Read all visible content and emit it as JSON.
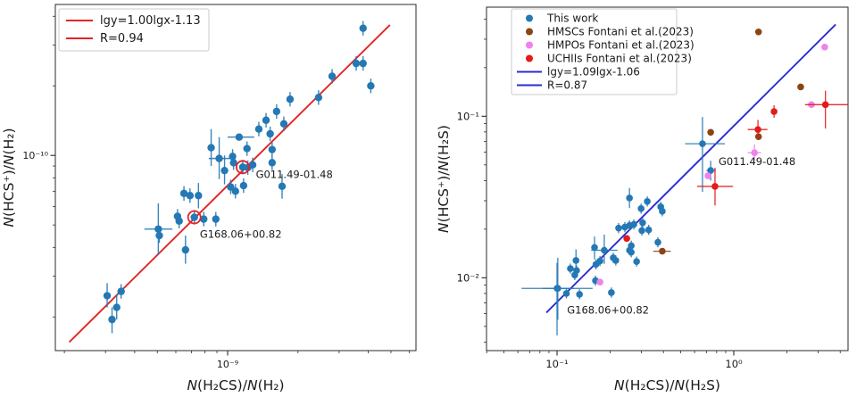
{
  "figure_background": "#ffffff",
  "chart_data": [
    {
      "type": "scatter",
      "title": "",
      "xlabel": "N(H₂CS)/N(H₂)",
      "ylabel": "N(HCS⁺)/N(H₂)",
      "xscale": "log",
      "yscale": "log",
      "grid": false,
      "legend_position": "upper left",
      "xlim": [
        1.83e-10,
        6.4e-09
      ],
      "ylim": [
        1.43e-11,
        4.5e-10
      ],
      "xticks": [
        {
          "value": 1e-09,
          "label": "10⁻⁹"
        }
      ],
      "yticks": [
        {
          "value": 1e-10,
          "label": "10⁻¹⁰"
        }
      ],
      "legend": [
        {
          "sample": "line",
          "color": "#e32424",
          "label": "lgy=1.00lgx-1.13"
        },
        {
          "sample": "line",
          "color": "#e32424",
          "label": "R=0.94"
        }
      ],
      "fit": {
        "slope": 1.0,
        "intercept": -1.13,
        "x1": 2.1e-10,
        "x2": 4.95e-09,
        "color": "#e32424",
        "label": "lgy=1.00lgx-1.13",
        "correlation": "R=0.94"
      },
      "series": [
        {
          "name": "This work",
          "color": "#2478b4",
          "marker": "circle",
          "default_err": true,
          "points": [
            [
              3.8e-09,
              3.55e-10
            ],
            [
              3.55e-09,
              2.5e-10
            ],
            [
              3.8e-09,
              2.5e-10
            ],
            [
              4.1e-09,
              2e-10
            ],
            [
              2.8e-09,
              2.2e-10
            ],
            [
              2.45e-09,
              1.78e-10
            ],
            [
              1.85e-09,
              1.75e-10
            ],
            [
              1.62e-09,
              1.55e-10
            ],
            [
              1.46e-09,
              1.42e-10
            ],
            [
              1.74e-09,
              1.37e-10
            ],
            [
              1.36e-09,
              1.3e-10
            ],
            [
              1.52e-09,
              1.24e-10
            ],
            [
              1.12e-09,
              1.2e-10,
              1e-09,
              1.3e-09,
              null,
              null
            ],
            [
              8.5e-10,
              1.08e-10,
              null,
              null,
              9e-11,
              1.3e-10
            ],
            [
              1.21e-09,
              1.07e-10
            ],
            [
              9.2e-10,
              9.7e-11,
              8.3e-10,
              1.03e-09,
              7.9e-11,
              1.2e-10
            ],
            [
              1.05e-09,
              9.9e-11
            ],
            [
              1.06e-09,
              9.3e-11
            ],
            [
              9.7e-10,
              8.6e-11,
              null,
              null,
              7.5e-11,
              1e-10
            ],
            [
              1.16e-09,
              8.9e-11
            ],
            [
              1.22e-09,
              8.85e-11
            ],
            [
              1.28e-09,
              9.1e-11
            ],
            [
              1.55e-09,
              1.06e-10
            ],
            [
              1.55e-09,
              9.3e-11
            ],
            [
              1.71e-09,
              7.35e-11,
              null,
              null,
              6.5e-11,
              8.3e-11
            ],
            [
              1.17e-09,
              7.4e-11
            ],
            [
              1.03e-09,
              7.3e-11
            ],
            [
              1.08e-09,
              7e-11
            ],
            [
              6.5e-10,
              6.85e-11
            ],
            [
              6.9e-10,
              6.7e-11
            ],
            [
              7.5e-10,
              6.7e-11,
              null,
              null,
              5.9e-11,
              7.6e-11
            ],
            [
              6.1e-10,
              5.45e-11
            ],
            [
              7.2e-10,
              5.4e-11
            ],
            [
              7.9e-10,
              5.3e-11
            ],
            [
              8.9e-10,
              5.3e-11
            ],
            [
              6.6e-10,
              3.9e-11,
              null,
              null,
              3.4e-11,
              4.5e-11
            ],
            [
              5.05e-10,
              4.8e-11,
              4.4e-10,
              5.8e-10,
              3.7e-11,
              6.2e-11
            ],
            [
              5.1e-10,
              4.5e-11
            ],
            [
              6.2e-10,
              5.2e-11
            ],
            [
              3.05e-10,
              2.47e-11,
              null,
              null,
              2.2e-11,
              2.8e-11
            ],
            [
              3.5e-10,
              2.58e-11
            ],
            [
              3.35e-10,
              2.2e-11,
              null,
              null,
              1.95e-11,
              2.5e-11
            ],
            [
              3.2e-10,
              1.95e-11,
              null,
              null,
              1.7e-11,
              2.2e-11
            ]
          ]
        }
      ],
      "rings": [
        {
          "x": 1.16e-09,
          "y": 8.9e-11,
          "color": "#e32424"
        },
        {
          "x": 7.2e-10,
          "y": 5.4e-11,
          "color": "#e32424"
        }
      ],
      "annotations": [
        {
          "text": "G011.49-01.48",
          "x": 1.32e-09,
          "y": 8e-11
        },
        {
          "text": "G168.06+00.82",
          "x": 7.6e-10,
          "y": 4.4e-11
        }
      ]
    },
    {
      "type": "scatter",
      "title": "",
      "xlabel": "N(H₂CS)/N(H₂S)",
      "ylabel": "N(HCS⁺)/N(H₂S)",
      "xscale": "log",
      "yscale": "log",
      "grid": false,
      "legend_position": "upper left",
      "xlim": [
        0.0399,
        4.43
      ],
      "ylim": [
        0.00354,
        0.474
      ],
      "xticks": [
        {
          "value": 0.1,
          "label": "10⁻¹"
        },
        {
          "value": 1,
          "label": "10⁰"
        }
      ],
      "yticks": [
        {
          "value": 0.1,
          "label": "10⁻¹"
        },
        {
          "value": 0.01,
          "label": "10⁻²"
        }
      ],
      "legend": [
        {
          "sample": "marker",
          "color": "#2478b4",
          "label": "This work"
        },
        {
          "sample": "marker",
          "color": "#8b4513",
          "label": "HMSCs Fontani et al.(2023)"
        },
        {
          "sample": "marker",
          "color": "#ee82ee",
          "label": "HMPOs Fontani et al.(2023)"
        },
        {
          "sample": "marker",
          "color": "#e31b1b",
          "label": "UCHIIs Fontani et al.(2023)"
        },
        {
          "sample": "line",
          "color": "#2b2bd5",
          "label": "lgy=1.09lgx-1.06"
        },
        {
          "sample": "line",
          "color": "#2b2bd5",
          "label": "R=0.87"
        }
      ],
      "fit": {
        "slope": 1.09,
        "intercept": -1.06,
        "x1": 0.087,
        "x2": 3.77,
        "color": "#2b2bd5",
        "label": "lgy=1.09lgx-1.06",
        "correlation": "R=0.87"
      },
      "series": [
        {
          "name": "This work",
          "color": "#2478b4",
          "marker": "circle",
          "default_err": true,
          "points": [
            [
              0.665,
              0.0676,
              0.53,
              0.89,
              0.034,
              0.099
            ],
            [
              0.74,
              0.0462,
              0.7,
              0.79,
              0.04,
              0.053
            ],
            [
              0.257,
              0.0312,
              null,
              null,
              0.027,
              0.036
            ],
            [
              0.299,
              0.0268
            ],
            [
              0.324,
              0.0297
            ],
            [
              0.386,
              0.0275
            ],
            [
              0.394,
              0.0258
            ],
            [
              0.305,
              0.0219
            ],
            [
              0.242,
              0.0206
            ],
            [
              0.257,
              0.0211
            ],
            [
              0.223,
              0.0203
            ],
            [
              0.272,
              0.0214
            ],
            [
              0.302,
              0.0196
            ],
            [
              0.33,
              0.0198
            ],
            [
              0.263,
              0.0158
            ],
            [
              0.257,
              0.0148
            ],
            [
              0.263,
              0.0144
            ],
            [
              0.282,
              0.0126
            ],
            [
              0.372,
              0.0166
            ],
            [
              0.163,
              0.0154,
              null,
              null,
              0.013,
              0.018
            ],
            [
              0.185,
              0.0148,
              0.156,
              0.22,
              0.0122,
              0.0185
            ],
            [
              0.166,
              0.0121
            ],
            [
              0.175,
              0.0127
            ],
            [
              0.208,
              0.0133
            ],
            [
              0.215,
              0.0128
            ],
            [
              0.128,
              0.0128,
              null,
              null,
              0.0108,
              0.015
            ],
            [
              0.119,
              0.0114
            ],
            [
              0.126,
              0.0104
            ],
            [
              0.129,
              0.0111
            ],
            [
              0.101,
              0.0086,
              0.083,
              0.125,
              0.0055,
              0.0133
            ],
            [
              0.1,
              0.0086,
              0.063,
              0.159,
              0.0044,
              0.0124
            ],
            [
              0.113,
              0.008
            ],
            [
              0.134,
              0.0079
            ],
            [
              0.165,
              0.0096
            ],
            [
              0.203,
              0.0081
            ]
          ]
        },
        {
          "name": "HMSCs Fontani et al.(2023)",
          "color": "#8b4513",
          "marker": "circle",
          "default_err": false,
          "points": [
            [
              1.38,
              0.333
            ],
            [
              2.39,
              0.152
            ],
            [
              1.38,
              0.0748
            ],
            [
              0.74,
              0.0796
            ],
            [
              0.394,
              0.0146,
              0.35,
              0.44,
              null,
              null
            ]
          ]
        },
        {
          "name": "HMPOs Fontani et al.(2023)",
          "color": "#ee82ee",
          "marker": "circle",
          "default_err": false,
          "points": [
            [
              3.27,
              0.268
            ],
            [
              2.75,
              0.118
            ],
            [
              1.31,
              0.0595,
              1.2,
              1.43,
              0.053,
              0.067
            ],
            [
              0.714,
              0.0428
            ],
            [
              0.175,
              0.0094
            ]
          ]
        },
        {
          "name": "UCHIIs Fontani et al.(2023)",
          "color": "#e31b1b",
          "marker": "circle",
          "default_err": false,
          "points": [
            [
              3.3,
              0.118,
              2.53,
              4.44,
              0.084,
              0.144
            ],
            [
              1.69,
              0.107,
              null,
              null,
              0.098,
              0.117
            ],
            [
              1.37,
              0.0828,
              1.2,
              1.55,
              0.072,
              0.095
            ],
            [
              0.783,
              0.0368,
              0.62,
              0.99,
              0.028,
              0.048
            ],
            [
              0.248,
              0.0175
            ]
          ]
        }
      ],
      "rings": [],
      "annotations": [
        {
          "text": "G011.49-01.48",
          "x": 0.82,
          "y": 0.05
        },
        {
          "text": "G168.06+00.82",
          "x": 0.114,
          "y": 0.006
        }
      ]
    }
  ]
}
